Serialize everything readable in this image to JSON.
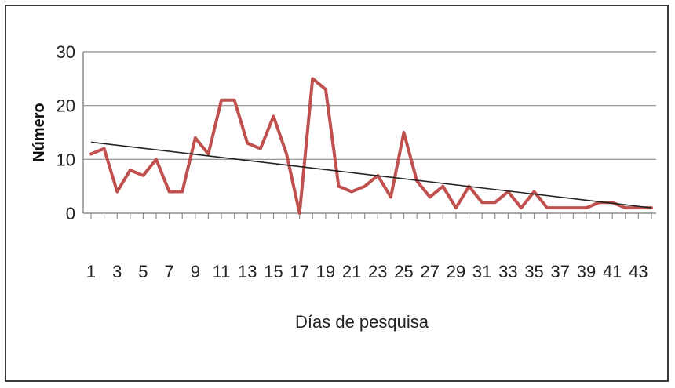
{
  "chart_data": {
    "type": "line",
    "title": "",
    "xlabel": "Días de pesquisa",
    "ylabel": "Número",
    "ylim": [
      0,
      30
    ],
    "yticks": [
      0,
      10,
      20,
      30
    ],
    "grid": true,
    "legend": "none",
    "x": [
      1,
      2,
      3,
      4,
      5,
      6,
      7,
      8,
      9,
      10,
      11,
      12,
      13,
      14,
      15,
      16,
      17,
      18,
      19,
      20,
      21,
      22,
      23,
      24,
      25,
      26,
      27,
      28,
      29,
      30,
      31,
      32,
      33,
      34,
      35,
      36,
      37,
      38,
      39,
      40,
      41,
      42,
      43,
      44
    ],
    "xtick_labels": [
      "1",
      "3",
      "5",
      "7",
      "9",
      "11",
      "13",
      "15",
      "17",
      "19",
      "21",
      "23",
      "25",
      "27",
      "29",
      "31",
      "33",
      "35",
      "37",
      "39",
      "41",
      "43"
    ],
    "series": [
      {
        "values": [
          11,
          12,
          4,
          8,
          7,
          10,
          4,
          4,
          14,
          11,
          21,
          21,
          13,
          12,
          18,
          11,
          0,
          25,
          23,
          5,
          4,
          5,
          7,
          3,
          15,
          6,
          3,
          5,
          1,
          5,
          2,
          2,
          4,
          1,
          4,
          1,
          1,
          1,
          1,
          2,
          2,
          1,
          1,
          1
        ],
        "color": "#c0504d"
      }
    ],
    "trendline": {
      "color": "#222222",
      "start": [
        1,
        13.2
      ],
      "end": [
        44,
        1.0
      ]
    }
  }
}
